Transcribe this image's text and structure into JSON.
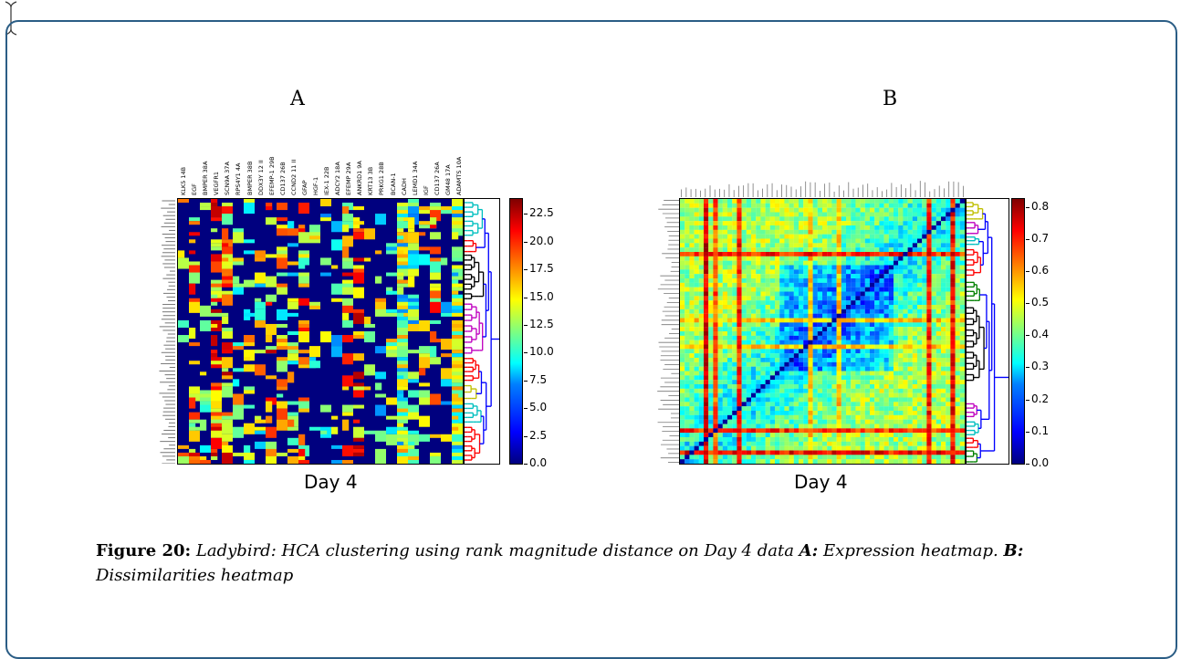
{
  "figure": {
    "panel_a_label": "A",
    "panel_b_label": "B",
    "panel_a_xlabel": "Day 4",
    "panel_b_xlabel": "Day 4",
    "caption_number": "Figure 20:",
    "caption_text": "Ladybird: HCA clustering using rank magnitude distance on Day 4 data",
    "caption_a_label": "A:",
    "caption_a_text": "Expression heatmap.",
    "caption_b_label": "B:",
    "caption_b_text": "Dissimilarities heatmap"
  },
  "chart_data": [
    {
      "type": "heatmap",
      "title": "",
      "xlabel": "Day 4",
      "ylabel": "",
      "columns": [
        "KLK5 14B",
        "EGF",
        "BMPER 38A",
        "VEGFR1",
        "SCN9A 37A",
        "RPS4Y1 4A",
        "BMPER 38B",
        "DDX3Y 12 II",
        "EFEMP-1 29B",
        "CD137 26B",
        "CCND2 11 II",
        "GFAP",
        "HGF-1",
        "IEX-1 22B",
        "ADCY2 18A",
        "EFEMP 29A",
        "ANKRD1 9A",
        "KRT13 3B",
        "PRKG1 28B",
        "BCAN-1",
        "CADH",
        "LEMD1 34A",
        "IGF",
        "CD137 26A",
        "GM48 17A",
        "ADAMTS 10A"
      ],
      "colorbar_ticks": [
        0.0,
        2.5,
        5.0,
        7.5,
        10.0,
        12.5,
        15.0,
        17.5,
        20.0,
        22.5
      ],
      "colorbar_labels": [
        "0.0",
        "2.5",
        "5.0",
        "7.5",
        "10.0",
        "12.5",
        "15.0",
        "17.5",
        "20.0",
        "22.5"
      ],
      "colorbar_range": [
        0,
        24
      ],
      "dendrogram": "right"
    },
    {
      "type": "heatmap",
      "title": "",
      "xlabel": "Day 4",
      "ylabel": "",
      "colorbar_ticks": [
        0.0,
        0.1,
        0.2,
        0.3,
        0.4,
        0.5,
        0.6,
        0.7,
        0.8
      ],
      "colorbar_labels": [
        "0.0",
        "0.1",
        "0.2",
        "0.3",
        "0.4",
        "0.5",
        "0.6",
        "0.7",
        "0.8"
      ],
      "colorbar_range": [
        0,
        0.83
      ],
      "dendrogram": "right"
    }
  ]
}
